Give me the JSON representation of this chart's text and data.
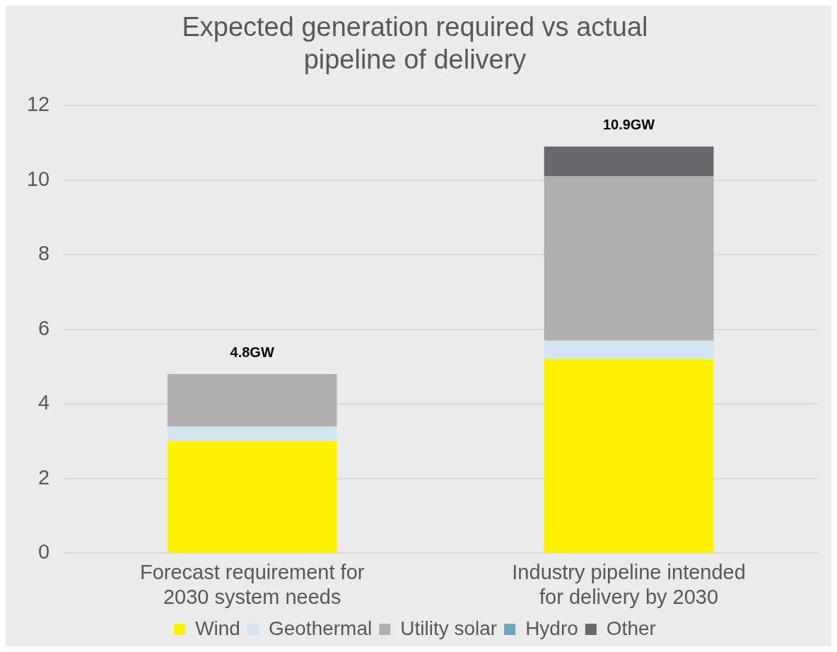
{
  "chart_data": {
    "type": "bar",
    "title": "Expected generation required vs actual pipeline of delivery",
    "categories": [
      "Forecast requirement for 2030 system needs",
      "Industry pipeline intended for delivery by 2030"
    ],
    "stacked": true,
    "series": [
      {
        "name": "Wind",
        "color": "#fff200",
        "values": [
          3.0,
          5.2
        ]
      },
      {
        "name": "Geothermal",
        "color": "#d3e4f3",
        "values": [
          0.4,
          0.5
        ]
      },
      {
        "name": "Utility solar",
        "color": "#b1afb0",
        "values": [
          1.4,
          4.4
        ]
      },
      {
        "name": "Hydro",
        "color": "#6ea5bf",
        "values": [
          0,
          0
        ]
      },
      {
        "name": "Other",
        "color": "#6a676c",
        "values": [
          0,
          0.8
        ]
      }
    ],
    "ylim": [
      0,
      12
    ],
    "yticks": [
      0,
      2,
      4,
      6,
      8,
      10,
      12
    ],
    "grid": "y",
    "legend": "bottom",
    "totals": [
      "4.8GW",
      "10.9GW"
    ]
  }
}
